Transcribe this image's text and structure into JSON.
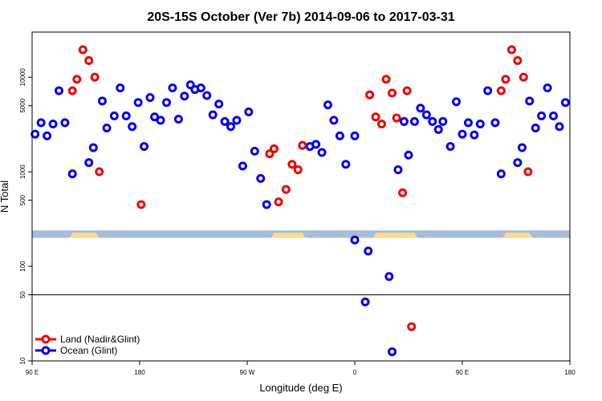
{
  "chart_data": {
    "type": "scatter",
    "title": "20S-15S October (Ver 7b)   2014-09-06 to 2017-03-31",
    "xlabel": "Longitude (deg E)",
    "ylabel": "N Total",
    "xlim": [
      0,
      360
    ],
    "ylim": [
      10,
      30000
    ],
    "y_scale": "log",
    "x_ticks": [
      {
        "value": 0,
        "label": "90 E"
      },
      {
        "value": 72,
        "label": "180"
      },
      {
        "value": 144,
        "label": "90 W"
      },
      {
        "value": 216,
        "label": "0"
      },
      {
        "value": 288,
        "label": "90 E"
      },
      {
        "value": 360,
        "label": "180"
      }
    ],
    "y_ticks": [
      {
        "value": 10,
        "label": "10"
      },
      {
        "value": 50,
        "label": "50"
      },
      {
        "value": 100,
        "label": "100"
      },
      {
        "value": 500,
        "label": "500"
      },
      {
        "value": 1000,
        "label": "1000"
      },
      {
        "value": 5000,
        "label": "5000"
      },
      {
        "value": 10000,
        "label": "10000"
      }
    ],
    "reference_line": {
      "y": 50,
      "color": "#000000"
    },
    "land_band": {
      "y_range": [
        200,
        240
      ],
      "ocean_color": "#a6bddb",
      "land_color": "#fddc8c",
      "land_segments": [
        [
          25,
          45
        ],
        [
          160,
          183
        ],
        [
          228,
          258
        ],
        [
          315,
          335
        ]
      ]
    },
    "grid": false,
    "legend_position": "bottom-left",
    "series": [
      {
        "name": "Land (Nadir&Glint)",
        "color": "#ee0000",
        "points": [
          {
            "x": 27,
            "y": 7200
          },
          {
            "x": 30,
            "y": 9500
          },
          {
            "x": 34,
            "y": 19500
          },
          {
            "x": 38,
            "y": 15000
          },
          {
            "x": 42,
            "y": 10000
          },
          {
            "x": 45,
            "y": 1000
          },
          {
            "x": 73,
            "y": 450
          },
          {
            "x": 159,
            "y": 1550
          },
          {
            "x": 162,
            "y": 1750
          },
          {
            "x": 165,
            "y": 480
          },
          {
            "x": 170,
            "y": 650
          },
          {
            "x": 174,
            "y": 1200
          },
          {
            "x": 178,
            "y": 1050
          },
          {
            "x": 181,
            "y": 1900
          },
          {
            "x": 226,
            "y": 6500
          },
          {
            "x": 230,
            "y": 3800
          },
          {
            "x": 234,
            "y": 3200
          },
          {
            "x": 237,
            "y": 9500
          },
          {
            "x": 241,
            "y": 6800
          },
          {
            "x": 244,
            "y": 3700
          },
          {
            "x": 248,
            "y": 600
          },
          {
            "x": 251,
            "y": 7200
          },
          {
            "x": 254,
            "y": 23
          },
          {
            "x": 314,
            "y": 7200
          },
          {
            "x": 317,
            "y": 9500
          },
          {
            "x": 321,
            "y": 19500
          },
          {
            "x": 325,
            "y": 15000
          },
          {
            "x": 329,
            "y": 10000
          },
          {
            "x": 332,
            "y": 1000
          }
        ]
      },
      {
        "name": "Ocean (Glint)",
        "color": "#0000ee",
        "points": [
          {
            "x": 2,
            "y": 2500
          },
          {
            "x": 6,
            "y": 3300
          },
          {
            "x": 10,
            "y": 2400
          },
          {
            "x": 14,
            "y": 3200
          },
          {
            "x": 18,
            "y": 7200
          },
          {
            "x": 22,
            "y": 3300
          },
          {
            "x": 27,
            "y": 950
          },
          {
            "x": 38,
            "y": 1250
          },
          {
            "x": 41,
            "y": 1800
          },
          {
            "x": 47,
            "y": 5600
          },
          {
            "x": 50,
            "y": 2900
          },
          {
            "x": 55,
            "y": 3900
          },
          {
            "x": 59,
            "y": 7700
          },
          {
            "x": 63,
            "y": 3900
          },
          {
            "x": 67,
            "y": 3000
          },
          {
            "x": 71,
            "y": 5400
          },
          {
            "x": 75,
            "y": 1850
          },
          {
            "x": 79,
            "y": 6100
          },
          {
            "x": 82,
            "y": 3800
          },
          {
            "x": 86,
            "y": 3500
          },
          {
            "x": 90,
            "y": 5400
          },
          {
            "x": 94,
            "y": 7700
          },
          {
            "x": 98,
            "y": 3600
          },
          {
            "x": 102,
            "y": 6300
          },
          {
            "x": 106,
            "y": 8300
          },
          {
            "x": 109,
            "y": 7400
          },
          {
            "x": 113,
            "y": 7700
          },
          {
            "x": 117,
            "y": 6400
          },
          {
            "x": 121,
            "y": 4000
          },
          {
            "x": 125,
            "y": 5200
          },
          {
            "x": 129,
            "y": 3400
          },
          {
            "x": 133,
            "y": 3000
          },
          {
            "x": 137,
            "y": 3500
          },
          {
            "x": 141,
            "y": 1150
          },
          {
            "x": 145,
            "y": 4300
          },
          {
            "x": 149,
            "y": 1650
          },
          {
            "x": 153,
            "y": 850
          },
          {
            "x": 157,
            "y": 450
          },
          {
            "x": 186,
            "y": 1850
          },
          {
            "x": 190,
            "y": 1950
          },
          {
            "x": 194,
            "y": 1600
          },
          {
            "x": 198,
            "y": 5100
          },
          {
            "x": 202,
            "y": 3500
          },
          {
            "x": 206,
            "y": 2400
          },
          {
            "x": 210,
            "y": 1200
          },
          {
            "x": 216,
            "y": 2400
          },
          {
            "x": 216,
            "y": 190
          },
          {
            "x": 223,
            "y": 42
          },
          {
            "x": 225,
            "y": 145
          },
          {
            "x": 239,
            "y": 78
          },
          {
            "x": 241,
            "y": 12.5
          },
          {
            "x": 245,
            "y": 1050
          },
          {
            "x": 249,
            "y": 3400
          },
          {
            "x": 252,
            "y": 1500
          },
          {
            "x": 256,
            "y": 3400
          },
          {
            "x": 260,
            "y": 4700
          },
          {
            "x": 264,
            "y": 4000
          },
          {
            "x": 268,
            "y": 3400
          },
          {
            "x": 272,
            "y": 2800
          },
          {
            "x": 275,
            "y": 3400
          },
          {
            "x": 280,
            "y": 1850
          },
          {
            "x": 284,
            "y": 5500
          },
          {
            "x": 288,
            "y": 2500
          },
          {
            "x": 292,
            "y": 3300
          },
          {
            "x": 296,
            "y": 2450
          },
          {
            "x": 300,
            "y": 3200
          },
          {
            "x": 305,
            "y": 7200
          },
          {
            "x": 310,
            "y": 3300
          },
          {
            "x": 314,
            "y": 950
          },
          {
            "x": 325,
            "y": 1250
          },
          {
            "x": 328,
            "y": 1800
          },
          {
            "x": 333,
            "y": 5600
          },
          {
            "x": 337,
            "y": 2900
          },
          {
            "x": 341,
            "y": 3900
          },
          {
            "x": 345,
            "y": 7700
          },
          {
            "x": 349,
            "y": 3900
          },
          {
            "x": 353,
            "y": 3000
          },
          {
            "x": 357,
            "y": 5400
          }
        ]
      }
    ]
  }
}
